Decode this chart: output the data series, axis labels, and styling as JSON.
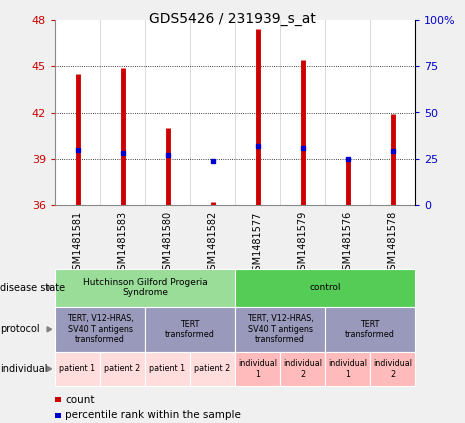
{
  "title": "GDS5426 / 231939_s_at",
  "samples": [
    "GSM1481581",
    "GSM1481583",
    "GSM1481580",
    "GSM1481582",
    "GSM1481577",
    "GSM1481579",
    "GSM1481576",
    "GSM1481578"
  ],
  "counts": [
    44.5,
    44.9,
    41.0,
    36.2,
    47.4,
    45.4,
    39.1,
    41.9
  ],
  "percentile_values": [
    30,
    28,
    27,
    24,
    32,
    31,
    25,
    29
  ],
  "ylim": [
    36,
    48
  ],
  "yticks": [
    36,
    39,
    42,
    45,
    48
  ],
  "y2ticks": [
    0,
    25,
    50,
    75,
    100
  ],
  "y2labels": [
    "0",
    "25",
    "50",
    "75",
    "100%"
  ],
  "bar_color": "#cc0000",
  "dot_color": "#0000cc",
  "background_color": "#f0f0f0",
  "plot_bg": "#ffffff",
  "disease_state_label_0": "Hutchinson Gilford Progeria\nSyndrome",
  "disease_state_label_1": "control",
  "disease_state_color_0": "#99dd99",
  "disease_state_color_1": "#55cc55",
  "protocol_color": "#9999bb",
  "individual_color_0": "#ffdddd",
  "individual_color_1": "#ffbbbb",
  "legend_count_color": "#cc0000",
  "legend_dot_color": "#0000cc"
}
